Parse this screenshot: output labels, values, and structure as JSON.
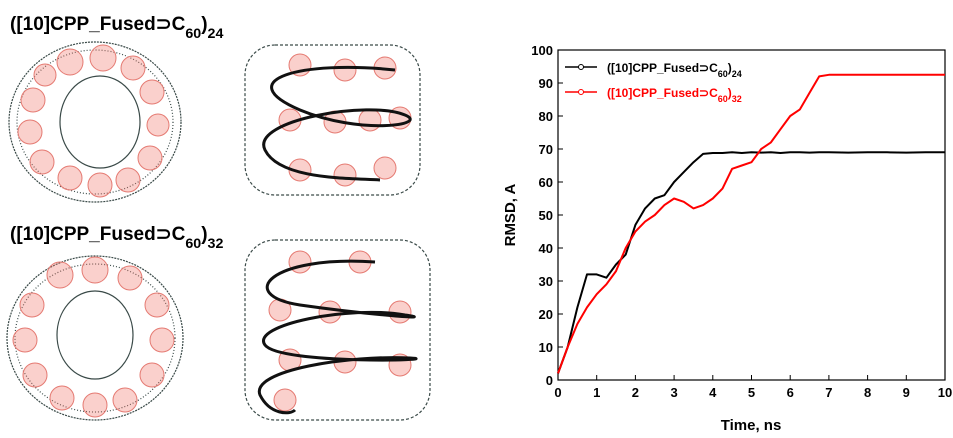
{
  "figure_labels": [
    "([10]CPP_Fused⊃C60)24",
    "([10]CPP_Fused⊃C60)32"
  ],
  "chart_data": {
    "type": "line",
    "x_label": "Time, ns",
    "y_label": "RMSD, A",
    "x": [
      0,
      0.25,
      0.5,
      0.75,
      1,
      1.25,
      1.5,
      1.75,
      2,
      2.25,
      2.5,
      2.75,
      3,
      3.25,
      3.5,
      3.75,
      4,
      4.25,
      4.5,
      4.75,
      5,
      5.25,
      5.5,
      5.75,
      6,
      6.25,
      6.5,
      6.75,
      7,
      7.5,
      8,
      8.5,
      9,
      9.5,
      10
    ],
    "series": [
      {
        "name": "([10]CPP_Fused⊃C60)24",
        "color": "#000000",
        "values": [
          2,
          10,
          22,
          32,
          32,
          31,
          35,
          38,
          47,
          52,
          55,
          56,
          60,
          63,
          66,
          68.5,
          68.8,
          68.8,
          69,
          68.8,
          69,
          68.9,
          69,
          68.8,
          69,
          69,
          68.9,
          69,
          69,
          68.9,
          69,
          69,
          68.9,
          69,
          69
        ]
      },
      {
        "name": "([10]CPP_Fused⊃C60)32",
        "color": "#ff0000",
        "values": [
          2,
          10,
          17,
          22,
          26,
          29,
          33,
          40,
          45,
          48,
          50,
          53,
          55,
          54,
          52,
          53,
          55,
          58,
          64,
          65,
          66,
          70,
          72,
          76,
          80,
          82,
          87,
          92,
          92.5,
          92.5,
          92.5,
          92.5,
          92.5,
          92.5,
          92.5
        ]
      }
    ],
    "xlim": [
      0,
      10
    ],
    "xticks": [
      0,
      1,
      2,
      3,
      4,
      5,
      6,
      7,
      8,
      9,
      10
    ],
    "ylim": [
      0,
      100
    ],
    "yticks": [
      0,
      10,
      20,
      30,
      40,
      50,
      60,
      70,
      80,
      90,
      100
    ],
    "legend": "upper left"
  }
}
